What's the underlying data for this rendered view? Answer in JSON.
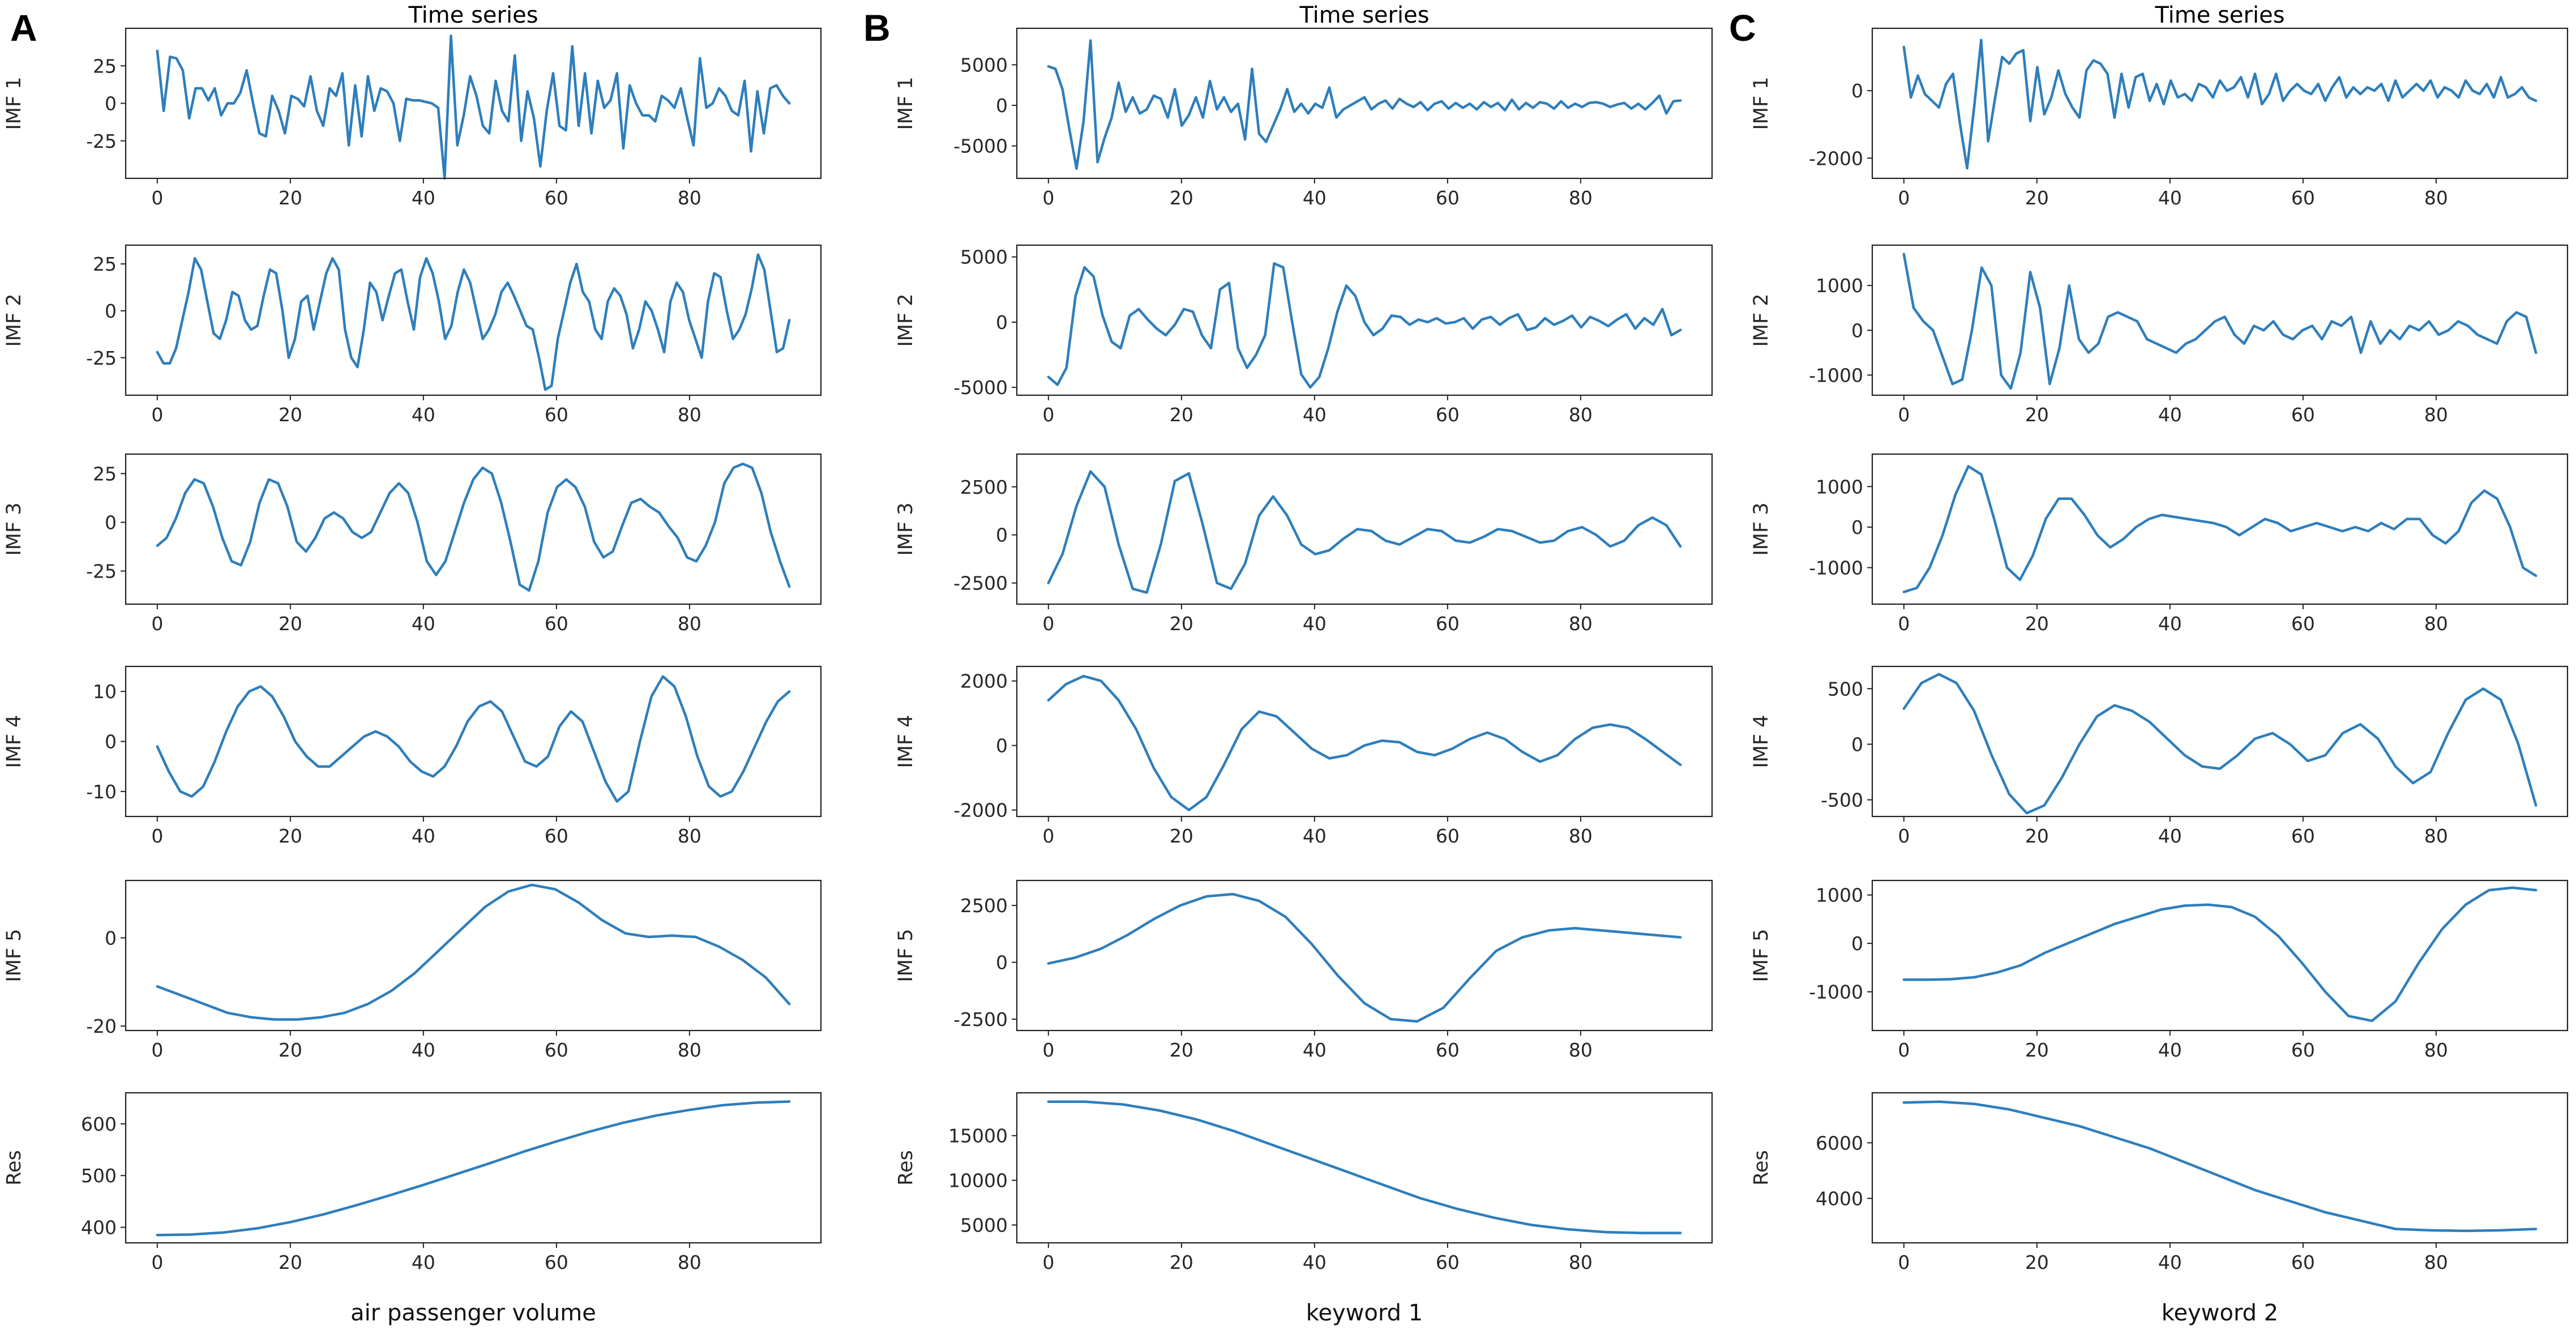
{
  "figure": {
    "panel_letters": [
      "A",
      "B",
      "C"
    ],
    "title": "Time series",
    "x_labels": [
      "air passenger volume",
      "keyword 1",
      "keyword 2"
    ],
    "row_labels": [
      "IMF 1",
      "IMF 2",
      "IMF 3",
      "IMF 4",
      "IMF 5",
      "Res"
    ],
    "line_color": "#2e7ebc"
  },
  "chart_data": [
    {
      "type": "line",
      "panel": "A",
      "row_label": "IMF 1",
      "x_ticks": [
        0,
        20,
        40,
        60,
        80
      ],
      "y_ticks": [
        -25,
        0,
        25
      ],
      "xlim": [
        -4.75,
        99.75
      ],
      "ylim": [
        -50,
        50
      ],
      "values": [
        35,
        -5,
        31,
        30,
        22,
        -10,
        10,
        10,
        2,
        10,
        -8,
        0,
        0,
        7,
        22,
        0,
        -20,
        -22,
        5,
        -5,
        -20,
        5,
        3,
        -2,
        18,
        -5,
        -15,
        10,
        5,
        20,
        -28,
        12,
        -22,
        18,
        -5,
        10,
        8,
        0,
        -25,
        3,
        2,
        2,
        1,
        0,
        -3,
        -50,
        45,
        -28,
        -8,
        18,
        5,
        -15,
        -20,
        15,
        -5,
        -12,
        32,
        -25,
        8,
        -10,
        -42,
        -5,
        20,
        -15,
        -18,
        38,
        -15,
        20,
        -20,
        15,
        -3,
        2,
        20,
        -30,
        12,
        0,
        -8,
        -8,
        -12,
        5,
        2,
        -3,
        10,
        -10,
        -28,
        30,
        -3,
        0,
        10,
        5,
        -5,
        -8,
        15,
        -32,
        8,
        -20,
        10,
        12,
        5,
        0
      ]
    },
    {
      "type": "line",
      "panel": "A",
      "row_label": "IMF 2",
      "x_ticks": [
        0,
        20,
        40,
        60,
        80
      ],
      "y_ticks": [
        -25,
        0,
        25
      ],
      "xlim": [
        -4.75,
        99.75
      ],
      "ylim": [
        -45,
        35
      ],
      "values": [
        -22,
        -28,
        -28,
        -20,
        -5,
        10,
        28,
        22,
        5,
        -12,
        -15,
        -5,
        10,
        8,
        -5,
        -10,
        -8,
        8,
        22,
        20,
        0,
        -25,
        -15,
        5,
        8,
        -10,
        5,
        20,
        28,
        22,
        -10,
        -25,
        -30,
        -10,
        15,
        10,
        -5,
        8,
        20,
        22,
        5,
        -10,
        18,
        28,
        20,
        5,
        -15,
        -8,
        10,
        22,
        15,
        0,
        -15,
        -10,
        -2,
        10,
        15,
        8,
        0,
        -8,
        -10,
        -25,
        -42,
        -40,
        -15,
        0,
        15,
        25,
        10,
        5,
        -10,
        -15,
        5,
        12,
        8,
        -2,
        -20,
        -10,
        5,
        0,
        -10,
        -22,
        5,
        15,
        10,
        -5,
        -15,
        -25,
        5,
        20,
        18,
        0,
        -15,
        -10,
        -2,
        12,
        30,
        22,
        0,
        -22,
        -20,
        -5
      ]
    },
    {
      "type": "line",
      "panel": "A",
      "row_label": "IMF 3",
      "x_ticks": [
        0,
        20,
        40,
        60,
        80
      ],
      "y_ticks": [
        -25,
        0,
        25
      ],
      "xlim": [
        -4.75,
        99.75
      ],
      "ylim": [
        -42,
        35
      ],
      "values": [
        -12,
        -8,
        2,
        15,
        22,
        20,
        8,
        -8,
        -20,
        -22,
        -10,
        10,
        22,
        20,
        8,
        -10,
        -15,
        -8,
        2,
        5,
        2,
        -5,
        -8,
        -5,
        5,
        15,
        20,
        15,
        0,
        -20,
        -27,
        -20,
        -5,
        10,
        22,
        28,
        25,
        10,
        -10,
        -32,
        -35,
        -20,
        5,
        18,
        22,
        18,
        8,
        -10,
        -18,
        -15,
        -2,
        10,
        12,
        8,
        5,
        -2,
        -8,
        -18,
        -20,
        -12,
        0,
        20,
        28,
        30,
        28,
        15,
        -5,
        -20,
        -33
      ]
    },
    {
      "type": "line",
      "panel": "A",
      "row_label": "IMF 4",
      "x_ticks": [
        0,
        20,
        40,
        60,
        80
      ],
      "y_ticks": [
        -10,
        0,
        10
      ],
      "xlim": [
        -4.75,
        99.75
      ],
      "ylim": [
        -15,
        15
      ],
      "values": [
        -1,
        -6,
        -10,
        -11,
        -9,
        -4,
        2,
        7,
        10,
        11,
        9,
        5,
        0,
        -3,
        -5,
        -5,
        -3,
        -1,
        1,
        2,
        1,
        -1,
        -4,
        -6,
        -7,
        -5,
        -1,
        4,
        7,
        8,
        6,
        1,
        -4,
        -5,
        -3,
        3,
        6,
        4,
        -2,
        -8,
        -12,
        -10,
        0,
        9,
        13,
        11,
        5,
        -3,
        -9,
        -11,
        -10,
        -6,
        -1,
        4,
        8,
        10
      ]
    },
    {
      "type": "line",
      "panel": "A",
      "row_label": "IMF 5",
      "x_ticks": [
        0,
        20,
        40,
        60,
        80
      ],
      "y_ticks": [
        -20,
        0
      ],
      "xlim": [
        -4.75,
        99.75
      ],
      "ylim": [
        -21,
        13
      ],
      "values": [
        -11,
        -13,
        -15,
        -17,
        -18,
        -18.5,
        -18.5,
        -18,
        -17,
        -15,
        -12,
        -8,
        -3,
        2,
        7,
        10.5,
        12,
        11,
        8,
        4,
        1,
        0.2,
        0.5,
        0.2,
        -2,
        -5,
        -9,
        -15
      ]
    },
    {
      "type": "line",
      "panel": "A",
      "row_label": "Res",
      "x_ticks": [
        0,
        20,
        40,
        60,
        80
      ],
      "y_ticks": [
        400,
        500,
        600
      ],
      "xlim": [
        -4.75,
        99.75
      ],
      "ylim": [
        370,
        660
      ],
      "values": [
        385,
        386,
        390,
        398,
        410,
        425,
        443,
        462,
        482,
        503,
        524,
        546,
        566,
        585,
        602,
        616,
        627,
        636,
        641,
        643
      ]
    },
    {
      "type": "line",
      "panel": "B",
      "row_label": "IMF 1",
      "x_ticks": [
        0,
        20,
        40,
        60,
        80
      ],
      "y_ticks": [
        -5000,
        0,
        5000
      ],
      "xlim": [
        -4.75,
        99.75
      ],
      "ylim": [
        -9000,
        9500
      ],
      "values": [
        4800,
        4500,
        2000,
        -3000,
        -7800,
        -2000,
        8000,
        -7000,
        -4000,
        -1500,
        2800,
        -800,
        1000,
        -1000,
        -500,
        1200,
        800,
        -1500,
        2000,
        -2500,
        -1200,
        1000,
        -1500,
        3000,
        -500,
        1000,
        -800,
        200,
        -4200,
        4500,
        -3500,
        -4500,
        -2500,
        -500,
        2000,
        -800,
        200,
        -1000,
        200,
        -300,
        2200,
        -1500,
        -500,
        0,
        500,
        1000,
        -500,
        200,
        600,
        -400,
        800,
        200,
        -200,
        400,
        -600,
        200,
        500,
        -400,
        300,
        -300,
        200,
        -500,
        400,
        -200,
        300,
        -600,
        700,
        -500,
        300,
        -300,
        400,
        200,
        -400,
        500,
        -300,
        200,
        -200,
        300,
        400,
        200,
        -200,
        100,
        300,
        -400,
        200,
        -500,
        300,
        1200,
        -1000,
        500,
        600
      ]
    },
    {
      "type": "line",
      "panel": "B",
      "row_label": "IMF 2",
      "x_ticks": [
        0,
        20,
        40,
        60,
        80
      ],
      "y_ticks": [
        -5000,
        0,
        5000
      ],
      "xlim": [
        -4.75,
        99.75
      ],
      "ylim": [
        -5600,
        5900
      ],
      "values": [
        -4200,
        -4800,
        -3500,
        2000,
        4200,
        3500,
        500,
        -1500,
        -2000,
        500,
        1000,
        200,
        -500,
        -1000,
        -200,
        1000,
        800,
        -1000,
        -2000,
        2500,
        3000,
        -2000,
        -3500,
        -2500,
        -1000,
        4500,
        4200,
        0,
        -4000,
        -5000,
        -4200,
        -2000,
        800,
        2800,
        2000,
        0,
        -1000,
        -500,
        500,
        400,
        -200,
        200,
        0,
        300,
        -100,
        0,
        300,
        -500,
        200,
        400,
        -200,
        300,
        600,
        -600,
        -400,
        300,
        -200,
        100,
        500,
        -400,
        400,
        100,
        -300,
        200,
        600,
        -500,
        300,
        -200,
        1000,
        -1000,
        -600
      ]
    },
    {
      "type": "line",
      "panel": "B",
      "row_label": "IMF 3",
      "x_ticks": [
        0,
        20,
        40,
        60,
        80
      ],
      "y_ticks": [
        -2500,
        0,
        2500
      ],
      "xlim": [
        -4.75,
        99.75
      ],
      "ylim": [
        -3600,
        4200
      ],
      "values": [
        -2500,
        -1000,
        1500,
        3300,
        2500,
        -500,
        -2800,
        -3000,
        -500,
        2800,
        3200,
        500,
        -2500,
        -2800,
        -1500,
        1000,
        2000,
        1000,
        -500,
        -1000,
        -800,
        -200,
        300,
        200,
        -300,
        -500,
        -100,
        300,
        200,
        -300,
        -400,
        -100,
        300,
        200,
        -100,
        -400,
        -300,
        200,
        400,
        0,
        -600,
        -300,
        500,
        900,
        500,
        -600
      ]
    },
    {
      "type": "line",
      "panel": "B",
      "row_label": "IMF 4",
      "x_ticks": [
        0,
        20,
        40,
        60,
        80
      ],
      "y_ticks": [
        -2000,
        0,
        2000
      ],
      "xlim": [
        -4.75,
        99.75
      ],
      "ylim": [
        -2200,
        2450
      ],
      "values": [
        1400,
        1900,
        2150,
        2000,
        1400,
        500,
        -700,
        -1600,
        -2000,
        -1600,
        -600,
        500,
        1050,
        900,
        400,
        -100,
        -400,
        -300,
        0,
        150,
        100,
        -200,
        -300,
        -100,
        200,
        400,
        200,
        -200,
        -500,
        -300,
        200,
        550,
        650,
        550,
        200,
        -200,
        -600
      ]
    },
    {
      "type": "line",
      "panel": "B",
      "row_label": "IMF 5",
      "x_ticks": [
        0,
        20,
        40,
        60,
        80
      ],
      "y_ticks": [
        -2500,
        0,
        2500
      ],
      "xlim": [
        -4.75,
        99.75
      ],
      "ylim": [
        -3000,
        3600
      ],
      "values": [
        -50,
        200,
        600,
        1200,
        1900,
        2500,
        2900,
        3000,
        2700,
        2000,
        800,
        -600,
        -1800,
        -2500,
        -2600,
        -2000,
        -700,
        500,
        1100,
        1400,
        1500,
        1400,
        1300,
        1200,
        1100
      ]
    },
    {
      "type": "line",
      "panel": "B",
      "row_label": "Res",
      "x_ticks": [
        0,
        20,
        40,
        60,
        80
      ],
      "y_ticks": [
        5000,
        10000,
        15000
      ],
      "xlim": [
        -4.75,
        99.75
      ],
      "ylim": [
        3000,
        19800
      ],
      "values": [
        18800,
        18800,
        18500,
        17800,
        16800,
        15500,
        14000,
        12500,
        11000,
        9500,
        8000,
        6800,
        5800,
        5000,
        4500,
        4200,
        4100,
        4100
      ]
    },
    {
      "type": "line",
      "panel": "C",
      "row_label": "IMF 1",
      "x_ticks": [
        0,
        20,
        40,
        60,
        80
      ],
      "y_ticks": [
        -2000,
        0
      ],
      "xlim": [
        -4.75,
        99.75
      ],
      "ylim": [
        -2600,
        1850
      ],
      "values": [
        1300,
        -200,
        450,
        -100,
        -300,
        -500,
        200,
        500,
        -1000,
        -2300,
        -500,
        1500,
        -1500,
        -200,
        1000,
        800,
        1100,
        1200,
        -900,
        700,
        -700,
        -200,
        600,
        -100,
        -500,
        -800,
        600,
        900,
        800,
        500,
        -800,
        500,
        -500,
        400,
        500,
        -300,
        200,
        -400,
        300,
        -200,
        -100,
        -300,
        200,
        100,
        -200,
        300,
        0,
        100,
        400,
        -200,
        500,
        -400,
        -100,
        500,
        -300,
        0,
        200,
        0,
        -100,
        200,
        -300,
        100,
        400,
        -200,
        100,
        -100,
        100,
        0,
        200,
        -300,
        300,
        -200,
        0,
        200,
        0,
        300,
        -200,
        100,
        0,
        -200,
        300,
        0,
        -100,
        200,
        -200,
        400,
        -200,
        -100,
        100,
        -200,
        -300
      ]
    },
    {
      "type": "line",
      "panel": "C",
      "row_label": "IMF 2",
      "x_ticks": [
        0,
        20,
        40,
        60,
        80
      ],
      "y_ticks": [
        -1000,
        0,
        1000
      ],
      "xlim": [
        -4.75,
        99.75
      ],
      "ylim": [
        -1450,
        1900
      ],
      "values": [
        1700,
        500,
        200,
        0,
        -600,
        -1200,
        -1100,
        0,
        1400,
        1000,
        -1000,
        -1300,
        -500,
        1300,
        500,
        -1200,
        -400,
        1000,
        -200,
        -500,
        -300,
        300,
        400,
        300,
        200,
        -200,
        -300,
        -400,
        -500,
        -300,
        -200,
        0,
        200,
        300,
        -100,
        -300,
        100,
        0,
        200,
        -100,
        -200,
        0,
        100,
        -200,
        200,
        100,
        300,
        -500,
        200,
        -300,
        0,
        -200,
        100,
        0,
        200,
        -100,
        0,
        200,
        100,
        -100,
        -200,
        -300,
        200,
        400,
        300,
        -500
      ]
    },
    {
      "type": "line",
      "panel": "C",
      "row_label": "IMF 3",
      "x_ticks": [
        0,
        20,
        40,
        60,
        80
      ],
      "y_ticks": [
        -1000,
        0,
        1000
      ],
      "xlim": [
        -4.75,
        99.75
      ],
      "ylim": [
        -1900,
        1800
      ],
      "values": [
        -1600,
        -1500,
        -1000,
        -200,
        800,
        1500,
        1300,
        200,
        -1000,
        -1300,
        -700,
        200,
        700,
        700,
        300,
        -200,
        -500,
        -300,
        0,
        200,
        300,
        250,
        200,
        150,
        100,
        0,
        -200,
        0,
        200,
        100,
        -100,
        0,
        100,
        0,
        -100,
        0,
        -100,
        100,
        -50,
        200,
        200,
        -200,
        -400,
        -100,
        600,
        900,
        700,
        0,
        -1000,
        -1200
      ]
    },
    {
      "type": "line",
      "panel": "C",
      "row_label": "IMF 4",
      "x_ticks": [
        0,
        20,
        40,
        60,
        80
      ],
      "y_ticks": [
        -500,
        0,
        500
      ],
      "xlim": [
        -4.75,
        99.75
      ],
      "ylim": [
        -650,
        700
      ],
      "values": [
        320,
        550,
        630,
        550,
        300,
        -100,
        -450,
        -620,
        -550,
        -300,
        0,
        250,
        350,
        300,
        200,
        50,
        -100,
        -200,
        -220,
        -100,
        50,
        100,
        0,
        -150,
        -100,
        100,
        180,
        50,
        -200,
        -350,
        -250,
        100,
        400,
        500,
        400,
        0,
        -550
      ]
    },
    {
      "type": "line",
      "panel": "C",
      "row_label": "IMF 5",
      "x_ticks": [
        0,
        20,
        40,
        60,
        80
      ],
      "y_ticks": [
        -1000,
        0,
        1000
      ],
      "xlim": [
        -4.75,
        99.75
      ],
      "ylim": [
        -1800,
        1300
      ],
      "values": [
        -750,
        -750,
        -740,
        -700,
        -600,
        -450,
        -200,
        0,
        200,
        400,
        550,
        700,
        780,
        800,
        750,
        550,
        150,
        -400,
        -1000,
        -1500,
        -1600,
        -1200,
        -400,
        300,
        800,
        1100,
        1150,
        1100
      ]
    },
    {
      "type": "line",
      "panel": "C",
      "row_label": "Res",
      "x_ticks": [
        0,
        20,
        40,
        60,
        80
      ],
      "y_ticks": [
        4000,
        6000
      ],
      "xlim": [
        -4.75,
        99.75
      ],
      "ylim": [
        2400,
        7800
      ],
      "values": [
        7450,
        7480,
        7400,
        7200,
        6900,
        6600,
        6200,
        5800,
        5300,
        4800,
        4300,
        3900,
        3500,
        3200,
        2900,
        2850,
        2830,
        2850,
        2900
      ]
    }
  ]
}
